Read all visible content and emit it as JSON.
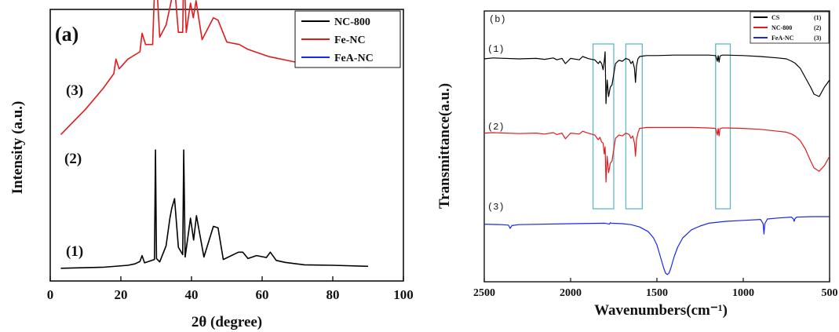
{
  "chart_data": [
    {
      "type": "line",
      "panel_label": "(a)",
      "xlabel": "2θ (degree)",
      "ylabel": "Intensity (a.u.)",
      "xlim": [
        0,
        100
      ],
      "xticks": [
        0,
        20,
        40,
        60,
        80,
        100
      ],
      "legend_position": "top-right",
      "series": [
        {
          "name": "NC-800",
          "curve_label": "(1)",
          "color": "#000000",
          "x": [
            3,
            15,
            22,
            24,
            25.4,
            26,
            26.7,
            29.5,
            29.8,
            30.1,
            31,
            32.8,
            33.9,
            34.4,
            35.2,
            36.3,
            37.5,
            37.8,
            38.2,
            39.7,
            40.6,
            41.4,
            43.5,
            46.2,
            47.5,
            49,
            53.3,
            54.5,
            56,
            58.4,
            61.2,
            62.3,
            64,
            66.5,
            72,
            80,
            90
          ],
          "values": [
            0.2,
            0.4,
            0.8,
            1.1,
            1.6,
            2.8,
            1.3,
            2.0,
            24.5,
            2.2,
            1.5,
            4.8,
            10.5,
            12.5,
            14.5,
            4.5,
            3.0,
            24.5,
            2.5,
            10.5,
            6.0,
            11.0,
            2.5,
            8.8,
            8.5,
            2.0,
            3.5,
            3.5,
            2.2,
            2.8,
            2.4,
            3.5,
            1.8,
            1.4,
            0.9,
            0.8,
            0.6
          ]
        },
        {
          "name": "Fe-NC",
          "curve_label": "(2)",
          "color": "#e31a1c",
          "x": [
            3,
            10,
            15,
            18,
            18.6,
            19.5,
            22,
            25.4,
            26,
            27,
            29,
            29.8,
            31,
            32.8,
            34,
            34.4,
            35.2,
            36.3,
            37.5,
            37.8,
            38.5,
            39.7,
            40.5,
            41.3,
            43,
            46.2,
            47.5,
            50,
            53.5,
            56,
            62,
            70,
            80,
            90
          ],
          "values": [
            3.0,
            8.2,
            12.5,
            15.5,
            18.5,
            16.5,
            18.5,
            20.0,
            23.8,
            21.5,
            21.5,
            38.5,
            23.0,
            25.5,
            29.5,
            31.0,
            33.5,
            24.0,
            24.0,
            38.5,
            24.0,
            30.0,
            27.0,
            30.5,
            22.5,
            27.0,
            26.5,
            22.0,
            21.5,
            20.5,
            19.0,
            17.8,
            17.0,
            16.8
          ]
        },
        {
          "name": "FeA-NC",
          "curve_label": "(3)",
          "color": "#1a28e6",
          "x": [
            3,
            10,
            15,
            20,
            22,
            25,
            25.8,
            26.5,
            27.5,
            30,
            35,
            40,
            43,
            43.9,
            44.6,
            46,
            50,
            50.8,
            52,
            55,
            60,
            70,
            80,
            90
          ],
          "values": [
            22.5,
            34.0,
            41.0,
            46.5,
            47.0,
            48.5,
            49.5,
            48.0,
            47.6,
            47.8,
            48.0,
            47.5,
            46.8,
            50.0,
            46.5,
            46.0,
            43.8,
            45.0,
            43.2,
            41.5,
            40.5,
            38.5,
            37.0,
            35.8
          ]
        }
      ]
    },
    {
      "type": "line",
      "panel_label": "(b)",
      "xlabel": "Wavenumbers(cm⁻¹)",
      "ylabel": "Transmittance(a.u.)",
      "xlim": [
        2500,
        500
      ],
      "xticks": [
        2500,
        2000,
        1500,
        1000,
        500
      ],
      "legend_position": "top-right",
      "highlight_boxes_x_ranges": [
        [
          1870,
          1750
        ],
        [
          1680,
          1585
        ],
        [
          1160,
          1075
        ]
      ],
      "series": [
        {
          "name": "CS",
          "legend_tag": "(1)",
          "curve_label": "(1)",
          "color": "#000000",
          "x": [
            2500,
            2450,
            2300,
            2200,
            2150,
            2100,
            2080,
            2050,
            2030,
            2000,
            1950,
            1930,
            1900,
            1880,
            1860,
            1840,
            1830,
            1820,
            1812,
            1805,
            1800,
            1795,
            1788,
            1780,
            1770,
            1760,
            1740,
            1720,
            1700,
            1690,
            1680,
            1660,
            1650,
            1640,
            1630,
            1624,
            1618,
            1610,
            1600,
            1580,
            1560,
            1500,
            1400,
            1300,
            1200,
            1160,
            1150,
            1145,
            1140,
            1135,
            1130,
            1120,
            1100,
            1000,
            900,
            800,
            750,
            720,
            700,
            670,
            640,
            610,
            590,
            560,
            530,
            500
          ],
          "values": [
            3.5,
            3.7,
            3.5,
            3.6,
            3.4,
            3.7,
            3.3,
            3.6,
            2.5,
            3.6,
            3.3,
            4.0,
            3.6,
            3.4,
            3.3,
            2.5,
            3.0,
            2.5,
            1.2,
            3.0,
            5.0,
            -6.0,
            -1.0,
            -4.5,
            -2.5,
            -2.0,
            2.5,
            3.2,
            3.0,
            3.3,
            3.6,
            3.3,
            2.5,
            3.0,
            1.5,
            -1.5,
            2.0,
            3.5,
            4.0,
            4.1,
            4.2,
            4.2,
            4.3,
            4.3,
            4.3,
            4.2,
            3.0,
            4.2,
            2.8,
            4.0,
            4.2,
            4.3,
            4.3,
            4.2,
            4.0,
            3.7,
            3.5,
            3.0,
            2.6,
            1.5,
            -0.5,
            -2.5,
            -4.0,
            -4.5,
            -2.5,
            -1.0
          ]
        },
        {
          "name": "NC-800",
          "legend_tag": "(2)",
          "curve_label": "(2)",
          "color": "#e31a1c",
          "x": [
            2500,
            2450,
            2300,
            2200,
            2150,
            2100,
            2080,
            2050,
            2030,
            2000,
            1950,
            1930,
            1900,
            1880,
            1860,
            1840,
            1830,
            1820,
            1812,
            1805,
            1800,
            1795,
            1788,
            1780,
            1770,
            1760,
            1740,
            1720,
            1700,
            1690,
            1680,
            1660,
            1650,
            1640,
            1630,
            1624,
            1618,
            1610,
            1600,
            1580,
            1560,
            1500,
            1400,
            1300,
            1200,
            1160,
            1150,
            1145,
            1140,
            1135,
            1130,
            1120,
            1100,
            1000,
            900,
            800,
            750,
            720,
            700,
            670,
            640,
            610,
            590,
            560,
            530,
            500
          ],
          "values": [
            3.4,
            3.5,
            3.3,
            3.4,
            3.2,
            3.5,
            3.1,
            3.4,
            2.2,
            3.4,
            3.2,
            3.8,
            3.4,
            3.2,
            3.0,
            2.0,
            2.5,
            1.5,
            1.3,
            -1.0,
            0.5,
            -7.0,
            -1.5,
            -5.0,
            -3.0,
            -2.5,
            2.3,
            3.0,
            2.8,
            3.1,
            3.4,
            3.1,
            2.3,
            2.8,
            1.3,
            -1.5,
            2.0,
            3.4,
            4.4,
            4.5,
            4.6,
            4.6,
            4.6,
            4.6,
            4.5,
            4.4,
            3.0,
            4.4,
            2.8,
            4.3,
            4.4,
            4.5,
            4.5,
            4.4,
            4.2,
            3.8,
            3.6,
            3.2,
            2.8,
            1.8,
            0.0,
            -2.5,
            -4.0,
            -4.7,
            -3.5,
            -1.5
          ]
        },
        {
          "name": "FeA-NC",
          "legend_tag": "(3)",
          "curve_label": "(3)",
          "color": "#1a28e6",
          "x": [
            2500,
            2400,
            2360,
            2350,
            2340,
            2300,
            2000,
            1800,
            1775,
            1770,
            1765,
            1700,
            1650,
            1600,
            1550,
            1520,
            1500,
            1480,
            1460,
            1450,
            1440,
            1430,
            1420,
            1400,
            1380,
            1350,
            1300,
            1250,
            1200,
            1100,
            1000,
            900,
            885,
            880,
            875,
            860,
            800,
            720,
            710,
            705,
            700,
            690,
            600,
            500
          ],
          "values": [
            3.4,
            3.3,
            3.2,
            2.5,
            3.1,
            3.3,
            3.5,
            3.6,
            3.4,
            3.7,
            3.6,
            3.5,
            3.3,
            2.8,
            1.8,
            0.5,
            -1.0,
            -3.5,
            -6.0,
            -7.0,
            -7.3,
            -7.0,
            -6.0,
            -3.5,
            -1.5,
            0.5,
            2.2,
            3.0,
            3.6,
            4.0,
            4.2,
            4.4,
            3.5,
            1.3,
            3.5,
            4.5,
            4.7,
            4.9,
            4.5,
            4.0,
            4.6,
            4.9,
            5.0,
            5.0
          ]
        }
      ]
    }
  ]
}
